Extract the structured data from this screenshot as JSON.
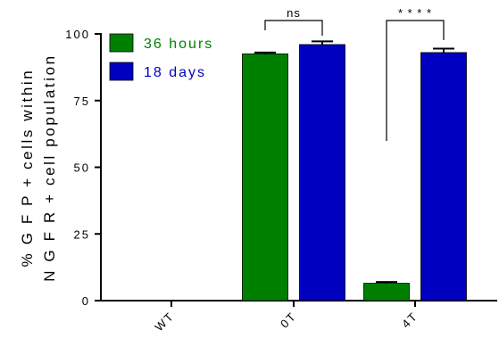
{
  "chart_data": {
    "type": "bar",
    "categories": [
      "WT",
      "0T",
      "4T"
    ],
    "ylabel": [
      "% G F P + cells within",
      "N G F R + cell population"
    ],
    "ylim": [
      0,
      100
    ],
    "yticks": [
      0,
      25,
      50,
      75,
      100
    ],
    "series": [
      {
        "name": "36 hours",
        "color": "#008000",
        "values": [
          0,
          92.5,
          6.5
        ],
        "errors": [
          0,
          0.5,
          0.5
        ]
      },
      {
        "name": "18 days",
        "color": "#0000c0",
        "values": [
          0,
          96,
          93
        ],
        "errors": [
          0,
          1.2,
          1.5
        ]
      }
    ],
    "annotations": [
      {
        "category": "0T",
        "text": "ns"
      },
      {
        "category": "4T",
        "text": "* * * *"
      }
    ],
    "legend_position": "top-left",
    "grid": false
  }
}
